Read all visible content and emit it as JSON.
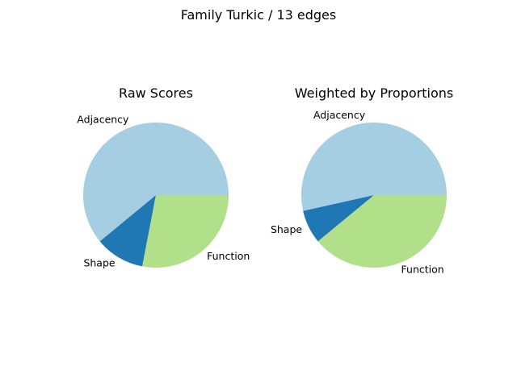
{
  "figure": {
    "title": "Family Turkic / 13 edges"
  },
  "chart_data": [
    {
      "type": "pie",
      "title": "Raw Scores",
      "start_angle_deg": 0,
      "direction": "counterclockwise",
      "slices": [
        {
          "label": "Adjacency",
          "value": 0.61,
          "color": "#a6cee3"
        },
        {
          "label": "Shape",
          "value": 0.11,
          "color": "#1f78b4"
        },
        {
          "label": "Function",
          "value": 0.28,
          "color": "#b2df8a"
        }
      ]
    },
    {
      "type": "pie",
      "title": "Weighted by Proportions",
      "start_angle_deg": 0,
      "direction": "counterclockwise",
      "slices": [
        {
          "label": "Adjacency",
          "value": 0.535,
          "color": "#a6cee3"
        },
        {
          "label": "Shape",
          "value": 0.075,
          "color": "#1f78b4"
        },
        {
          "label": "Function",
          "value": 0.39,
          "color": "#b2df8a"
        }
      ]
    }
  ]
}
